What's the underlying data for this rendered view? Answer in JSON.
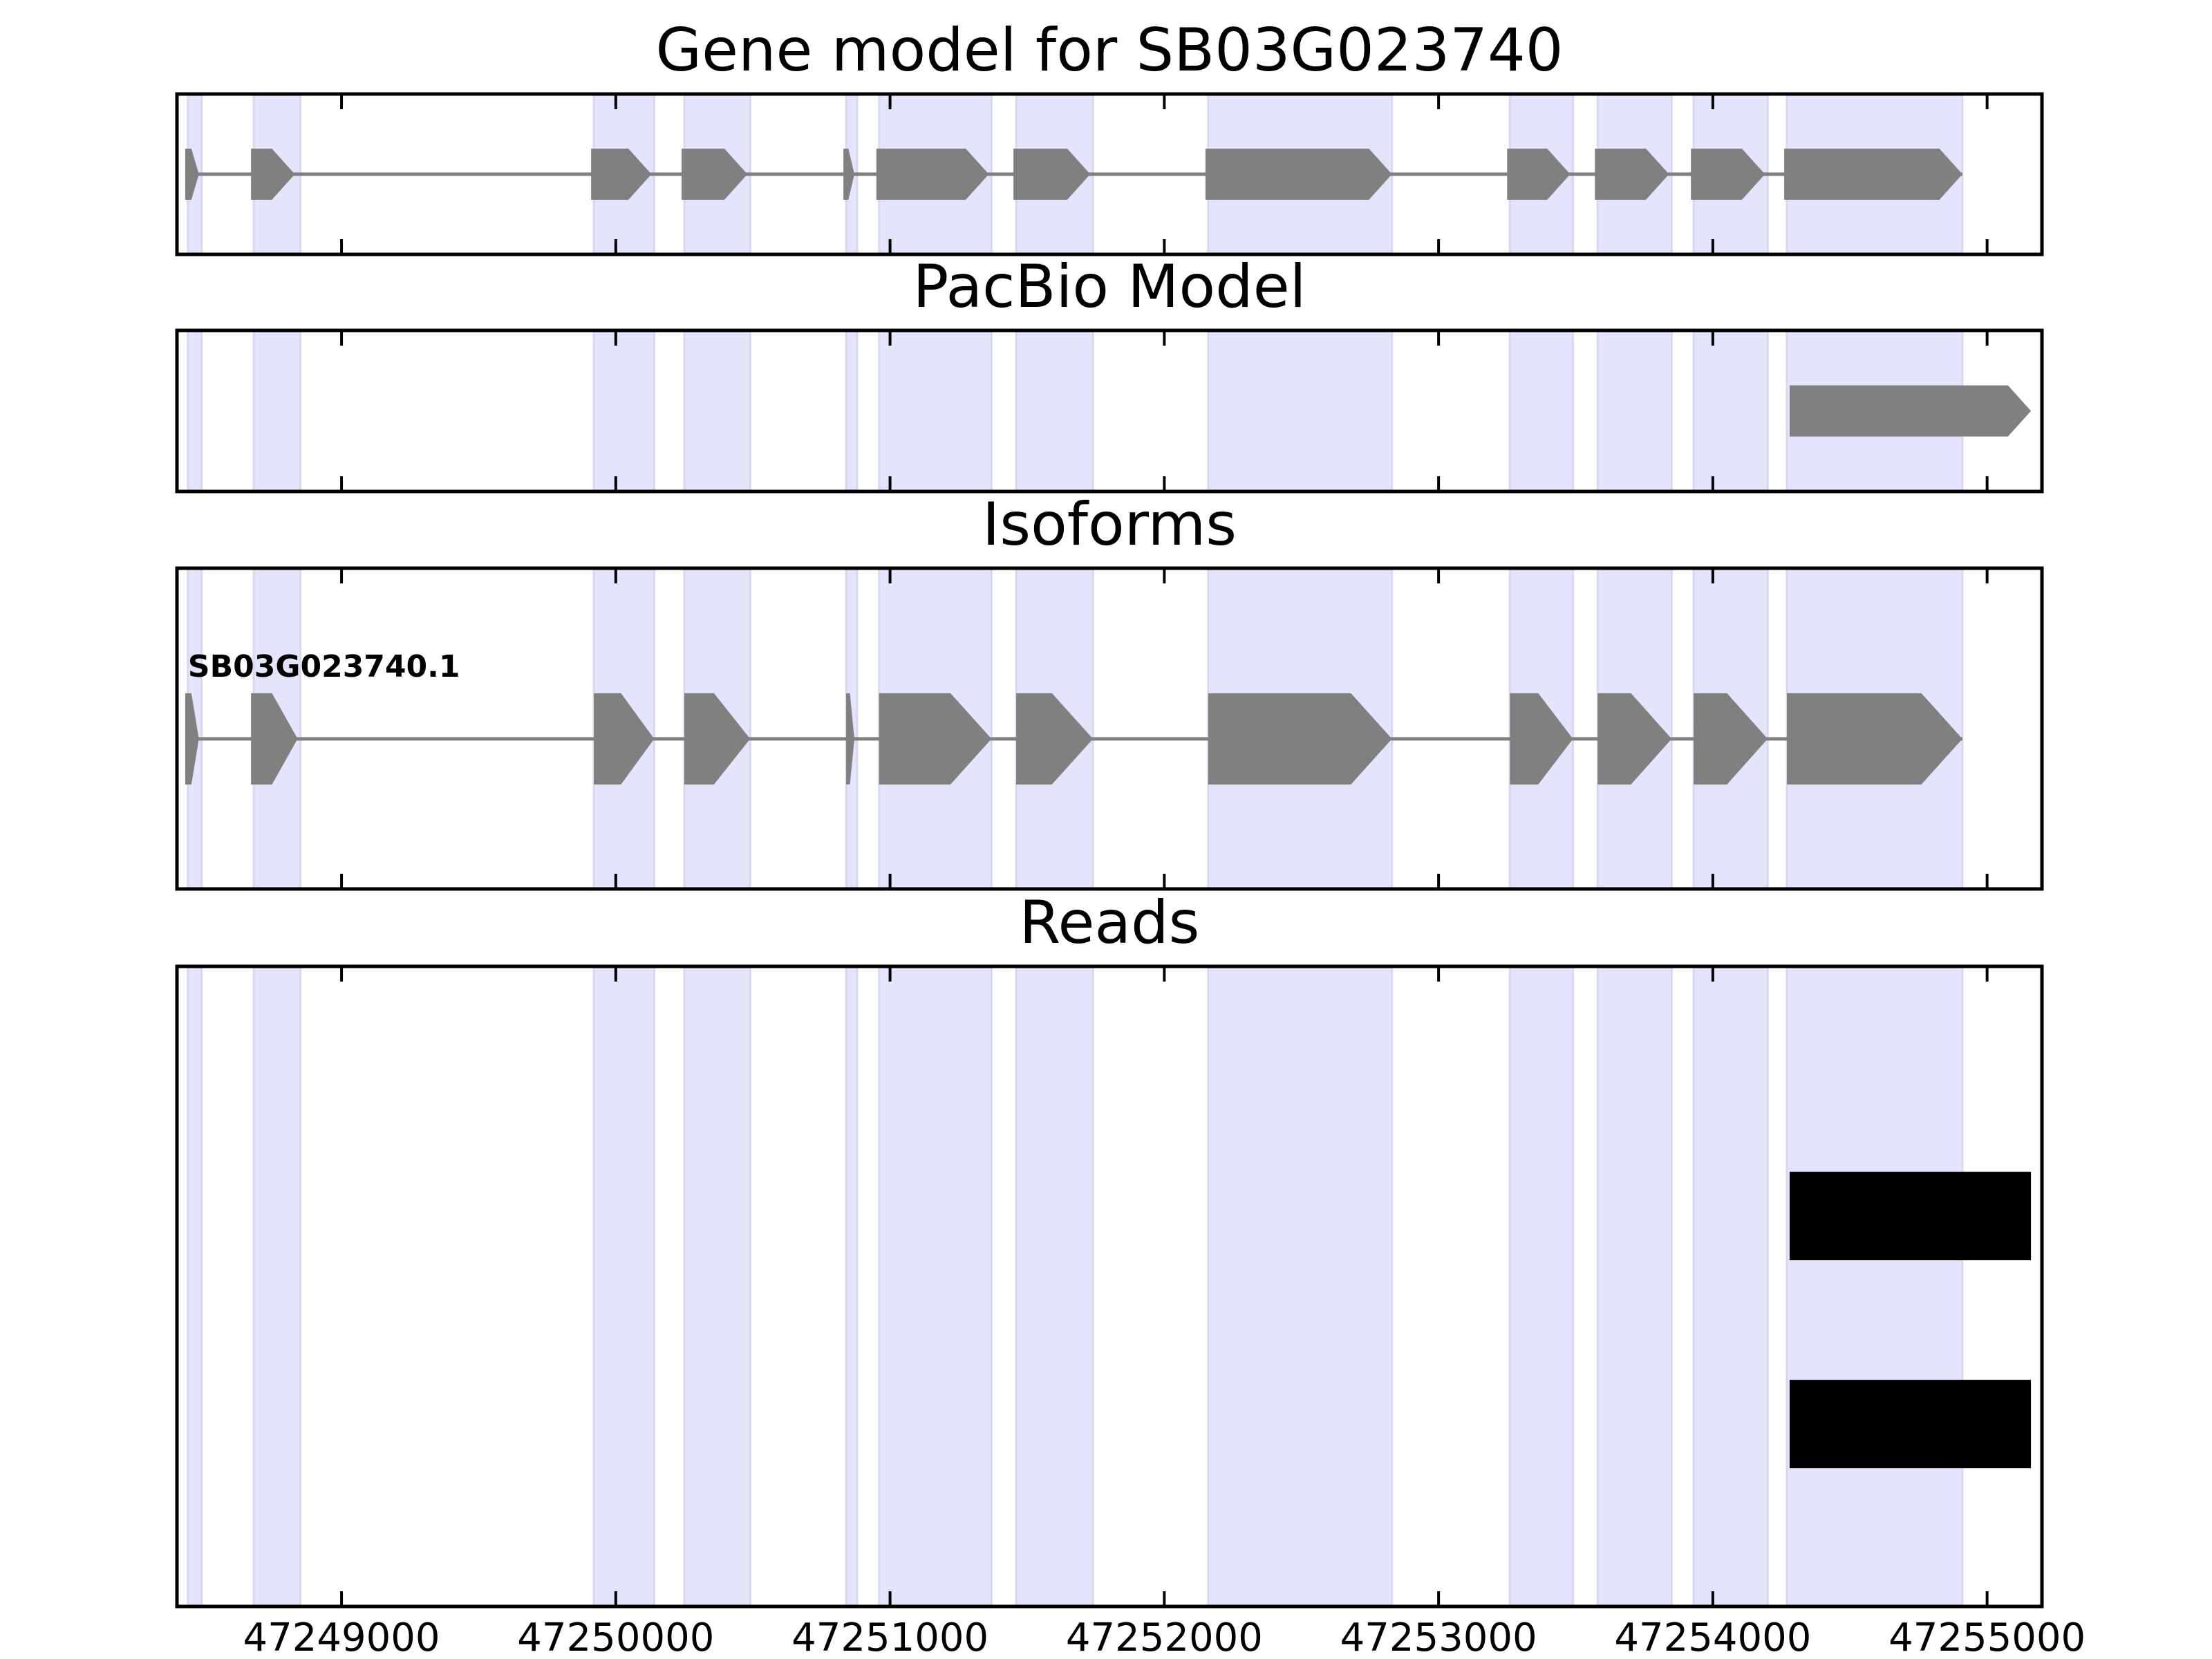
{
  "chart_data": {
    "type": "gene-track",
    "xlim": [
      47248400,
      47255200
    ],
    "x_ticks": [
      47249000,
      47250000,
      47251000,
      47252000,
      47253000,
      47254000,
      47255000
    ],
    "x_tick_labels": [
      "47249000",
      "47250000",
      "47251000",
      "47252000",
      "47253000",
      "47254000",
      "47255000"
    ],
    "colors": {
      "exon": "#808080",
      "intron": "#808080",
      "shade": "#e4e4fc",
      "read": "#000000",
      "frame": "#000000"
    },
    "exon_shading": [
      [
        47248440,
        47248490
      ],
      [
        47248680,
        47248850
      ],
      [
        47249920,
        47250140
      ],
      [
        47250250,
        47250490
      ],
      [
        47250840,
        47250880
      ],
      [
        47250960,
        47251370
      ],
      [
        47251460,
        47251740
      ],
      [
        47252160,
        47252830
      ],
      [
        47253260,
        47253490
      ],
      [
        47253580,
        47253850
      ],
      [
        47253930,
        47254200
      ],
      [
        47254270,
        47254910
      ]
    ],
    "panels": [
      {
        "id": "gene-model",
        "title": "Gene model for SB03G023740",
        "tracks": [
          {
            "label": "",
            "exons": [
              [
                47248430,
                47248480
              ],
              [
                47248670,
                47248830
              ],
              [
                47249910,
                47250130
              ],
              [
                47250240,
                47250480
              ],
              [
                47250830,
                47250870
              ],
              [
                47250950,
                47251360
              ],
              [
                47251450,
                47251730
              ],
              [
                47252150,
                47252830
              ],
              [
                47253250,
                47253480
              ],
              [
                47253570,
                47253840
              ],
              [
                47253920,
                47254190
              ],
              [
                47254260,
                47254910
              ]
            ]
          }
        ]
      },
      {
        "id": "pacbio-model",
        "title": "PacBio Model",
        "tracks": [
          {
            "label": "",
            "exons": [
              [
                47254280,
                47255160
              ]
            ]
          }
        ]
      },
      {
        "id": "isoforms",
        "title": "Isoforms",
        "tracks": [
          {
            "label": "SB03G023740.1",
            "exons": [
              [
                47248430,
                47248480
              ],
              [
                47248670,
                47248840
              ],
              [
                47249920,
                47250140
              ],
              [
                47250250,
                47250490
              ],
              [
                47250840,
                47250870
              ],
              [
                47250960,
                47251370
              ],
              [
                47251460,
                47251740
              ],
              [
                47252160,
                47252830
              ],
              [
                47253260,
                47253490
              ],
              [
                47253580,
                47253850
              ],
              [
                47253930,
                47254200
              ],
              [
                47254270,
                47254910
              ]
            ]
          }
        ]
      },
      {
        "id": "reads",
        "title": "Reads",
        "reads": [
          [
            47254280,
            47255160
          ],
          [
            47254280,
            47255160
          ]
        ]
      }
    ]
  }
}
